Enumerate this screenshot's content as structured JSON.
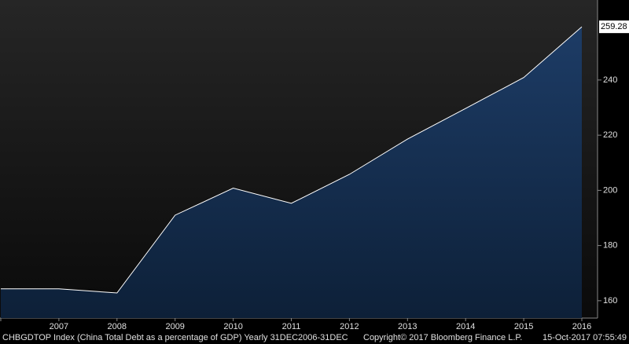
{
  "chart_data": {
    "type": "area",
    "categories": [
      null,
      "2007",
      "2008",
      "2009",
      "2010",
      "2011",
      "2012",
      "2013",
      "2014",
      "2015",
      "2016"
    ],
    "series": [
      {
        "name": "CHBGDTOP Index",
        "color": "#ffffff",
        "values": [
          164.3,
          164.3,
          162.8,
          191.0,
          200.8,
          195.3,
          205.8,
          218.6,
          229.7,
          240.9,
          259.28
        ],
        "value_labels": [
          null,
          null,
          null,
          null,
          null,
          null,
          null,
          null,
          null,
          null,
          "259.28"
        ]
      }
    ],
    "ylim": [
      153.7,
      269.0
    ],
    "yticks": [
      160,
      180,
      200,
      220,
      240
    ],
    "footer": {
      "description": "CHBGDTOP Index (China Total Debt as a percentage of GDP)  Yearly 31DEC2006-31DEC",
      "copyright": "Copyright© 2017 Bloomberg Finance L.P.",
      "timestamp": "15-Oct-2017 07:55:49"
    }
  }
}
